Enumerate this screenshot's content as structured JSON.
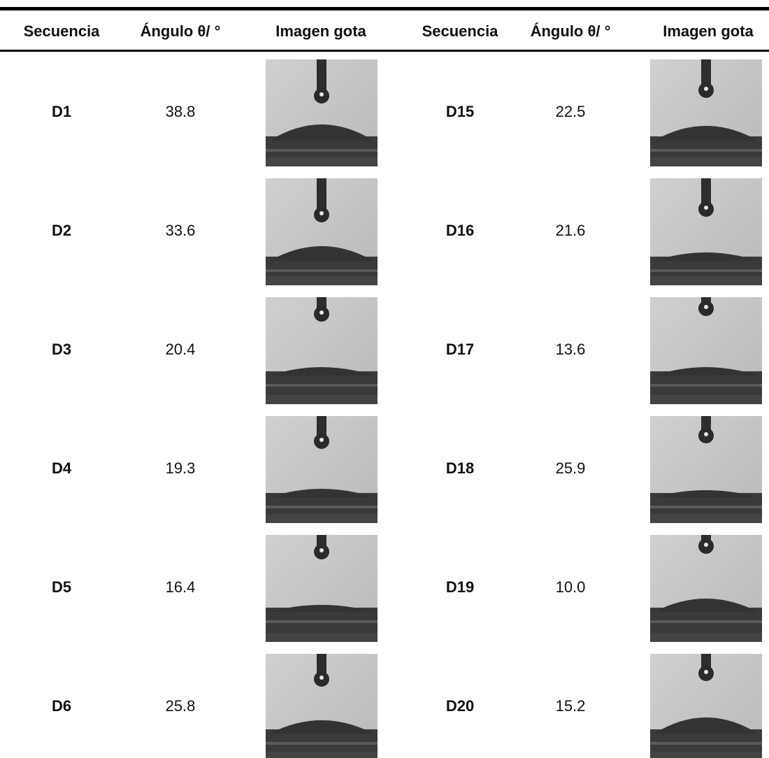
{
  "header": [
    "Secuencia",
    "Ángulo θ/ °",
    "Imagen gota",
    "Secuencia",
    "Ángulo θ/ °",
    "Imagen gota"
  ],
  "rows": [
    [
      "D1",
      "38.8",
      "D15",
      "22.5"
    ],
    [
      "D2",
      "33.6",
      "D16",
      "21.6"
    ],
    [
      "D3",
      "20.4",
      "D17",
      "13.6"
    ],
    [
      "D4",
      "19.3",
      "D18",
      "25.9"
    ],
    [
      "D5",
      "16.4",
      "D19",
      "10.0"
    ],
    [
      "D6",
      "25.8",
      "D20",
      "15.2"
    ]
  ]
}
